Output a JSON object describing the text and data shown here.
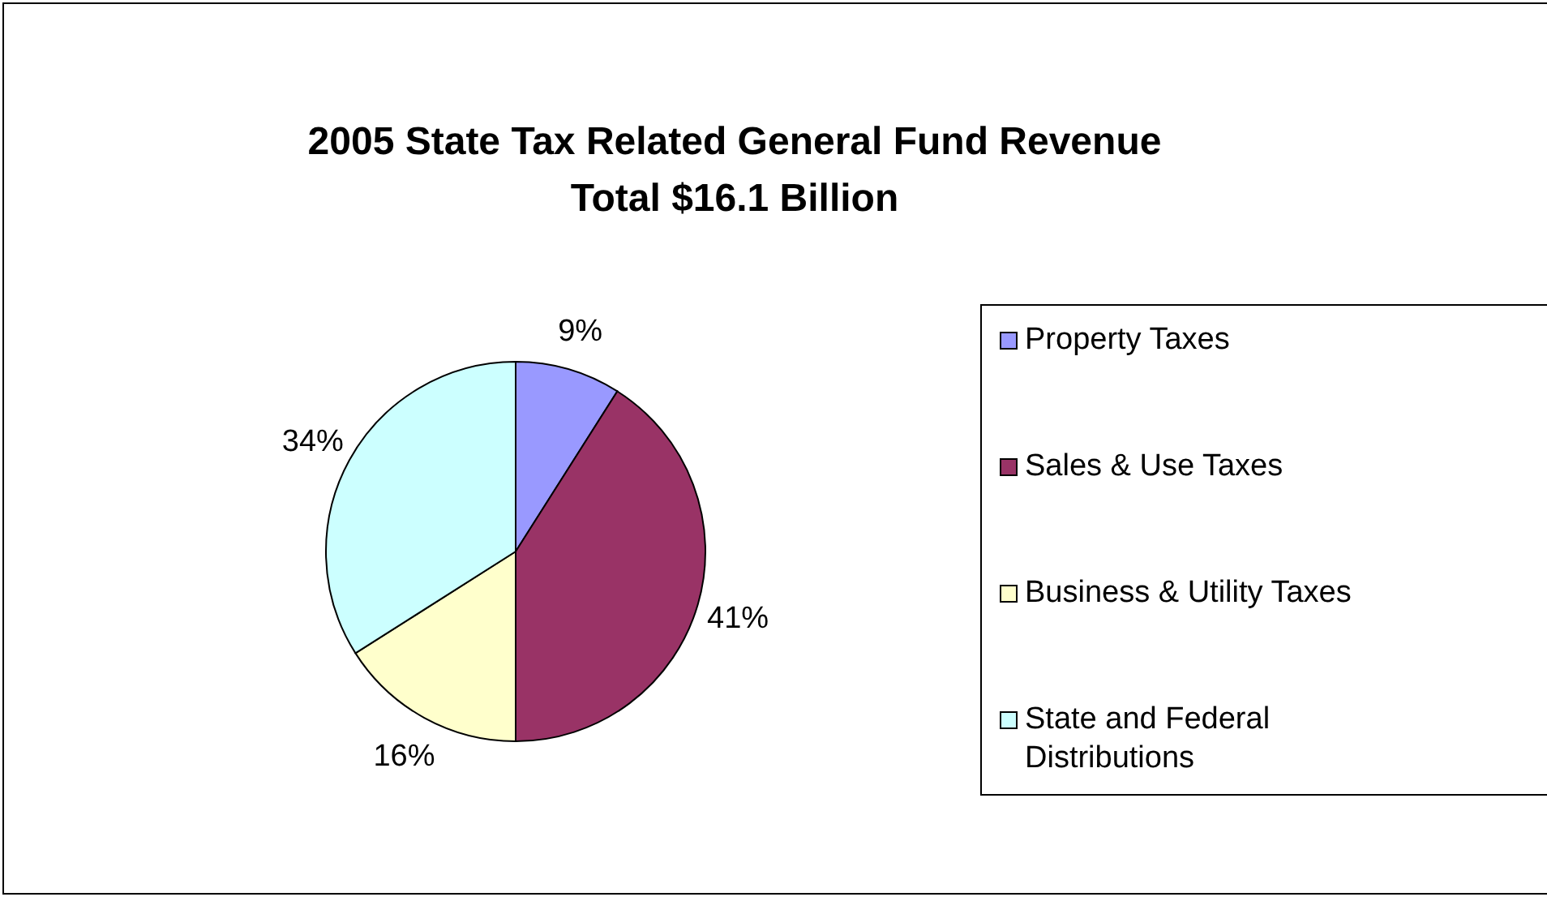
{
  "chart_data": {
    "type": "pie",
    "title": "2005 State Tax Related General Fund Revenue\nTotal $16.1 Billion",
    "categories": [
      "Property Taxes",
      "Sales & Use Taxes",
      "Business & Utility Taxes",
      "State and Federal\nDistributions"
    ],
    "values": [
      9,
      41,
      16,
      34
    ],
    "colors": [
      "#9999ff",
      "#993366",
      "#ffffcc",
      "#ccffff"
    ],
    "value_labels": [
      "9%",
      "41%",
      "16%",
      "34%"
    ],
    "legend": "right"
  }
}
